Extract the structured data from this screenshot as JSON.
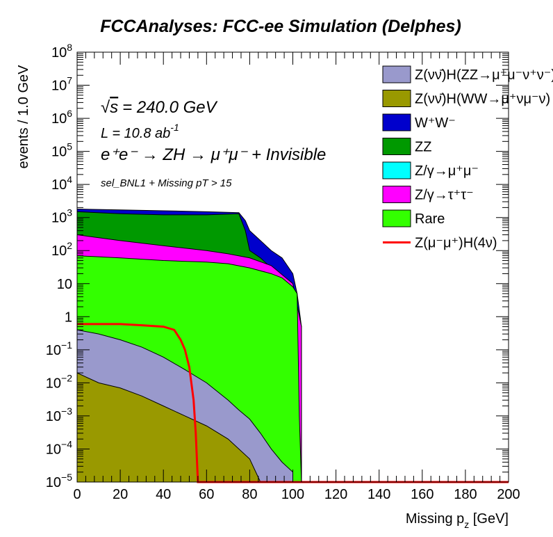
{
  "chart_data": {
    "type": "histogram-stacked",
    "title": "FCCAnalyses: FCC-ee Simulation (Delphes)",
    "xlabel": "Missing p_z [GeV]",
    "ylabel": "events / 1.0 GeV",
    "xlim": [
      0,
      200
    ],
    "ylim": [
      1e-05,
      100000000
    ],
    "yscale": "log",
    "grid": false,
    "legend_position": "top-right",
    "x_ticks": [
      0,
      20,
      40,
      60,
      80,
      100,
      120,
      140,
      160,
      180,
      200
    ],
    "x_tick_labels": [
      "0",
      "20",
      "40",
      "60",
      "80",
      "100",
      "120",
      "140",
      "160",
      "180",
      "200"
    ],
    "y_tick_labels": [
      {
        "value": 100000000,
        "base": "10",
        "exp": "8"
      },
      {
        "value": 10000000,
        "base": "10",
        "exp": "7"
      },
      {
        "value": 1000000,
        "base": "10",
        "exp": "6"
      },
      {
        "value": 100000,
        "base": "10",
        "exp": "5"
      },
      {
        "value": 10000,
        "base": "10",
        "exp": "4"
      },
      {
        "value": 1000,
        "base": "10",
        "exp": "3"
      },
      {
        "value": 100,
        "base": "10",
        "exp": "2"
      },
      {
        "value": 10,
        "base": "10",
        "exp": ""
      },
      {
        "value": 1,
        "base": "1",
        "exp": ""
      },
      {
        "value": 0.1,
        "base": "10",
        "exp": "−1"
      },
      {
        "value": 0.01,
        "base": "10",
        "exp": "−2"
      },
      {
        "value": 0.001,
        "base": "10",
        "exp": "−3"
      },
      {
        "value": 0.0001,
        "base": "10",
        "exp": "−4"
      },
      {
        "value": 1e-05,
        "base": "10",
        "exp": "−5"
      }
    ],
    "annotations": {
      "sqrt_s": "= 240.0 GeV",
      "lumi": "L = 10.8 ab",
      "lumi_exp": "-1",
      "process": "e⁺e⁻ → ZH → μ⁺μ⁻ + Invisible",
      "selection": "sel_BNL1 + Missing pT > 15"
    },
    "series": [
      {
        "name": "Z(νν̄)H(ZZ→μ⁺μ⁻ν⁺ν⁻)",
        "color": "#9999cc",
        "kind": "fill",
        "points": [
          [
            0,
            0.4
          ],
          [
            10,
            0.3
          ],
          [
            20,
            0.2
          ],
          [
            30,
            0.12
          ],
          [
            40,
            0.06
          ],
          [
            50,
            0.025
          ],
          [
            60,
            0.01
          ],
          [
            70,
            0.003
          ],
          [
            75,
            0.0015
          ],
          [
            80,
            0.0008
          ],
          [
            85,
            0.0003
          ],
          [
            90,
            0.0001
          ],
          [
            95,
            4e-05
          ],
          [
            100,
            2e-05
          ]
        ]
      },
      {
        "name": "Z(νν̄)H(WW→μ⁺νμ⁻ν)",
        "color": "#999900",
        "kind": "fill",
        "points": [
          [
            0,
            0.02
          ],
          [
            10,
            0.01
          ],
          [
            20,
            0.007
          ],
          [
            30,
            0.004
          ],
          [
            40,
            0.002
          ],
          [
            50,
            0.001
          ],
          [
            60,
            0.0005
          ],
          [
            70,
            0.0002
          ],
          [
            80,
            5e-05
          ],
          [
            85,
            1e-05
          ]
        ]
      },
      {
        "name": "W⁺W⁻",
        "color": "#0000cc",
        "kind": "fill",
        "points": [
          [
            0,
            1800
          ],
          [
            20,
            1700
          ],
          [
            40,
            1600
          ],
          [
            60,
            1500
          ],
          [
            75,
            1400
          ],
          [
            78,
            800
          ],
          [
            80,
            400
          ],
          [
            85,
            200
          ],
          [
            90,
            100
          ],
          [
            95,
            60
          ],
          [
            100,
            20
          ],
          [
            102,
            5
          ],
          [
            104,
            0.5
          ]
        ]
      },
      {
        "name": "ZZ",
        "color": "#009900",
        "kind": "fill",
        "points": [
          [
            0,
            1500
          ],
          [
            20,
            1300
          ],
          [
            40,
            1200
          ],
          [
            60,
            1200
          ],
          [
            75,
            1300
          ],
          [
            78,
            400
          ],
          [
            80,
            100
          ],
          [
            85,
            60
          ],
          [
            90,
            30
          ],
          [
            95,
            15
          ],
          [
            100,
            8
          ],
          [
            104,
            0.5
          ]
        ]
      },
      {
        "name": "Z/γ→μ⁺μ⁻",
        "color": "#00ffff",
        "kind": "fill",
        "points": []
      },
      {
        "name": "Z/γ→τ⁺τ⁻",
        "color": "#ff00ff",
        "kind": "fill",
        "points": [
          [
            0,
            300
          ],
          [
            20,
            200
          ],
          [
            40,
            140
          ],
          [
            60,
            100
          ],
          [
            70,
            80
          ],
          [
            80,
            60
          ],
          [
            90,
            35
          ],
          [
            100,
            10
          ],
          [
            104,
            0.5
          ]
        ]
      },
      {
        "name": "Rare",
        "color": "#33ff00",
        "kind": "fill",
        "points": [
          [
            0,
            70
          ],
          [
            20,
            60
          ],
          [
            40,
            50
          ],
          [
            60,
            45
          ],
          [
            70,
            40
          ],
          [
            80,
            30
          ],
          [
            90,
            20
          ],
          [
            95,
            15
          ],
          [
            100,
            8
          ],
          [
            102,
            5
          ],
          [
            103,
            0.001
          ],
          [
            104,
            1e-05
          ]
        ]
      },
      {
        "name": "Z(μ⁻μ⁺)H(4ν)",
        "color": "#ff0000",
        "kind": "line",
        "points": [
          [
            0,
            0.6
          ],
          [
            20,
            0.6
          ],
          [
            30,
            0.55
          ],
          [
            40,
            0.5
          ],
          [
            45,
            0.4
          ],
          [
            48,
            0.2
          ],
          [
            50,
            0.1
          ],
          [
            52,
            0.03
          ],
          [
            54,
            0.003
          ],
          [
            55,
            0.0003
          ],
          [
            56,
            1e-05
          ],
          [
            200,
            1e-05
          ]
        ]
      }
    ]
  }
}
